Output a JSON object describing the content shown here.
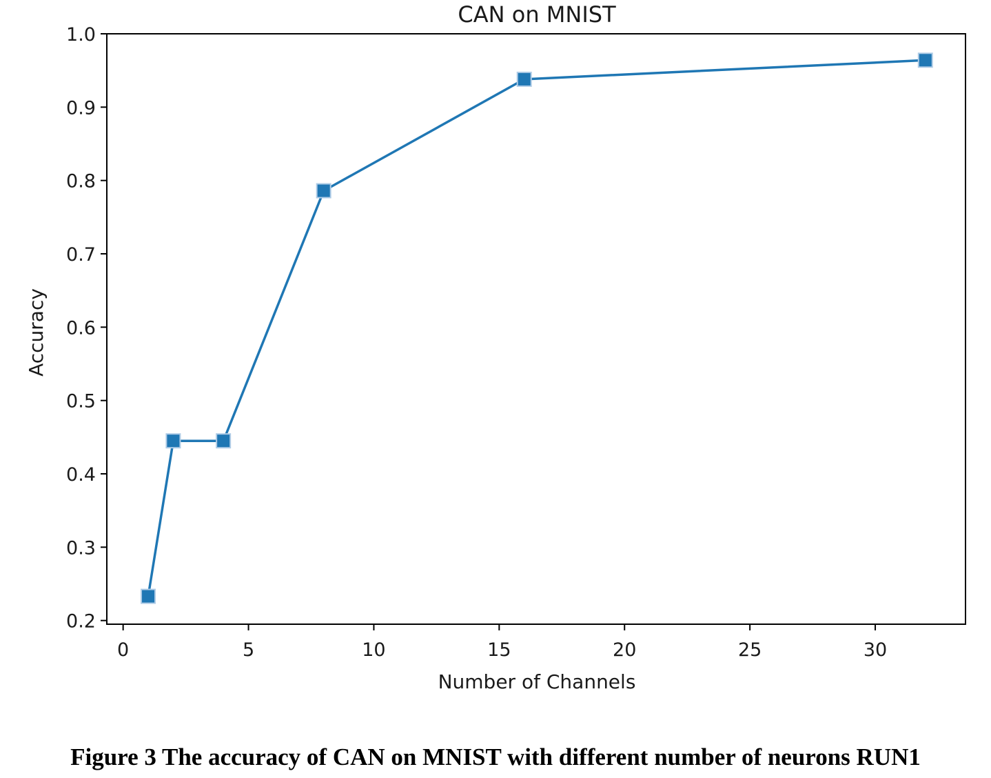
{
  "chart_data": {
    "type": "line",
    "title": "CAN on MNIST",
    "xlabel": "Number of Channels",
    "ylabel": "Accuracy",
    "xlim": [
      -0.65,
      33.6
    ],
    "ylim": [
      0.195,
      1.0
    ],
    "xticks": [
      0,
      5,
      10,
      15,
      20,
      25,
      30
    ],
    "xtick_labels": [
      "0",
      "5",
      "10",
      "15",
      "20",
      "25",
      "30"
    ],
    "yticks": [
      0.2,
      0.3,
      0.4,
      0.5,
      0.6,
      0.7,
      0.8,
      0.9,
      1.0
    ],
    "ytick_labels": [
      "0.2",
      "0.3",
      "0.4",
      "0.5",
      "0.6",
      "0.7",
      "0.8",
      "0.9",
      "1.0"
    ],
    "grid": false,
    "series": [
      {
        "x": [
          1,
          2,
          4,
          8,
          16,
          32
        ],
        "y": [
          0.233,
          0.445,
          0.445,
          0.786,
          0.938,
          0.964
        ],
        "color": "#1f77b4",
        "marker": "square"
      }
    ]
  },
  "caption": "Figure 3 The accuracy of CAN on MNIST with different number of neurons RUN1"
}
